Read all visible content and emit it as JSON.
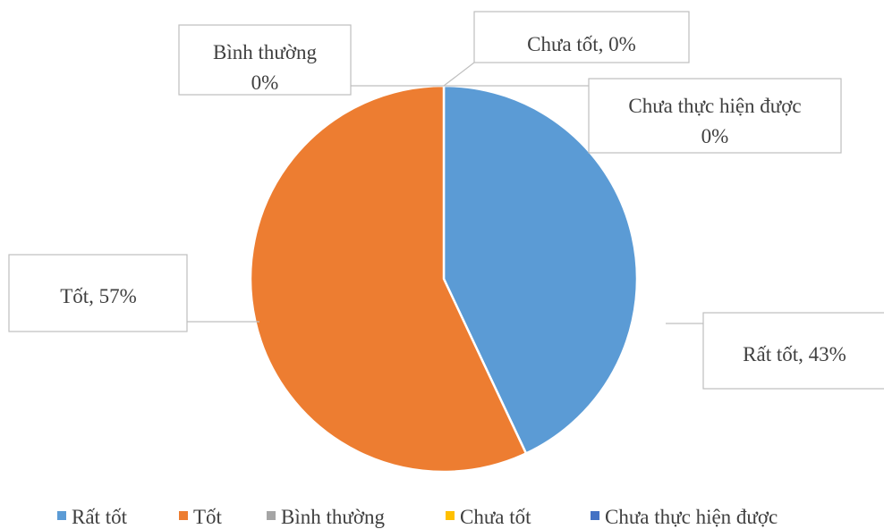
{
  "chart_data": {
    "type": "pie",
    "categories": [
      "Rất tốt",
      "Tốt",
      "Bình thường",
      "Chưa tốt",
      "Chưa thực hiện được"
    ],
    "values": [
      43,
      57,
      0,
      0,
      0
    ],
    "unit": "%",
    "colors": [
      "#5B9BD5",
      "#ED7D31",
      "#A5A5A5",
      "#FFC000",
      "#4472C4"
    ],
    "data_labels": [
      {
        "lines": [
          "Rất tốt, 43%"
        ]
      },
      {
        "lines": [
          "Tốt, 57%"
        ]
      },
      {
        "lines": [
          "Bình thường",
          "0%"
        ]
      },
      {
        "lines": [
          "Chưa tốt, 0%"
        ]
      },
      {
        "lines": [
          "Chưa thực hiện được",
          "0%"
        ]
      }
    ],
    "legend": {
      "position": "bottom",
      "entries": [
        "Rất tốt",
        "Tốt",
        "Bình thường",
        "Chưa tốt",
        "Chưa thực hiện được"
      ]
    }
  }
}
